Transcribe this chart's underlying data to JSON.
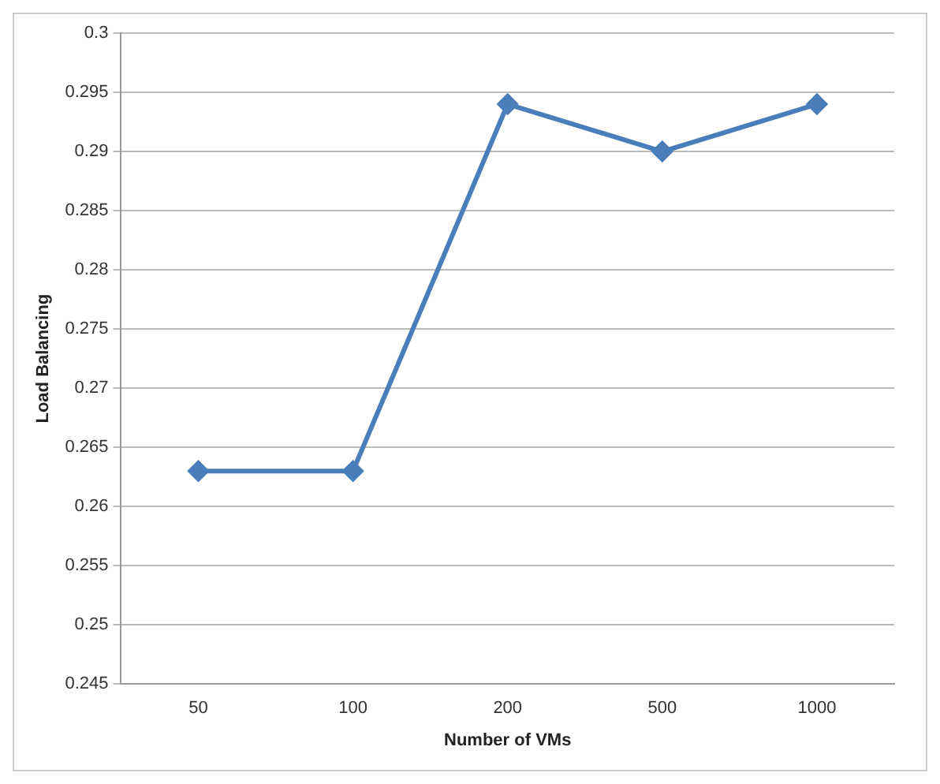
{
  "chart_data": {
    "type": "line",
    "xlabel": "Number of VMs",
    "ylabel": "Load Balancing",
    "categories": [
      "50",
      "100",
      "200",
      "500",
      "1000"
    ],
    "series": [
      {
        "color": "#4a7ebb",
        "values": [
          0.263,
          0.263,
          0.294,
          0.29,
          0.294
        ]
      }
    ],
    "ylim": [
      0.245,
      0.3
    ],
    "yticks": [
      0.245,
      0.25,
      0.255,
      0.26,
      0.265,
      0.27,
      0.275,
      0.28,
      0.285,
      0.29,
      0.295,
      0.3
    ],
    "grid": "y",
    "legend": false,
    "marker": "diamond",
    "line_style": "solid"
  }
}
